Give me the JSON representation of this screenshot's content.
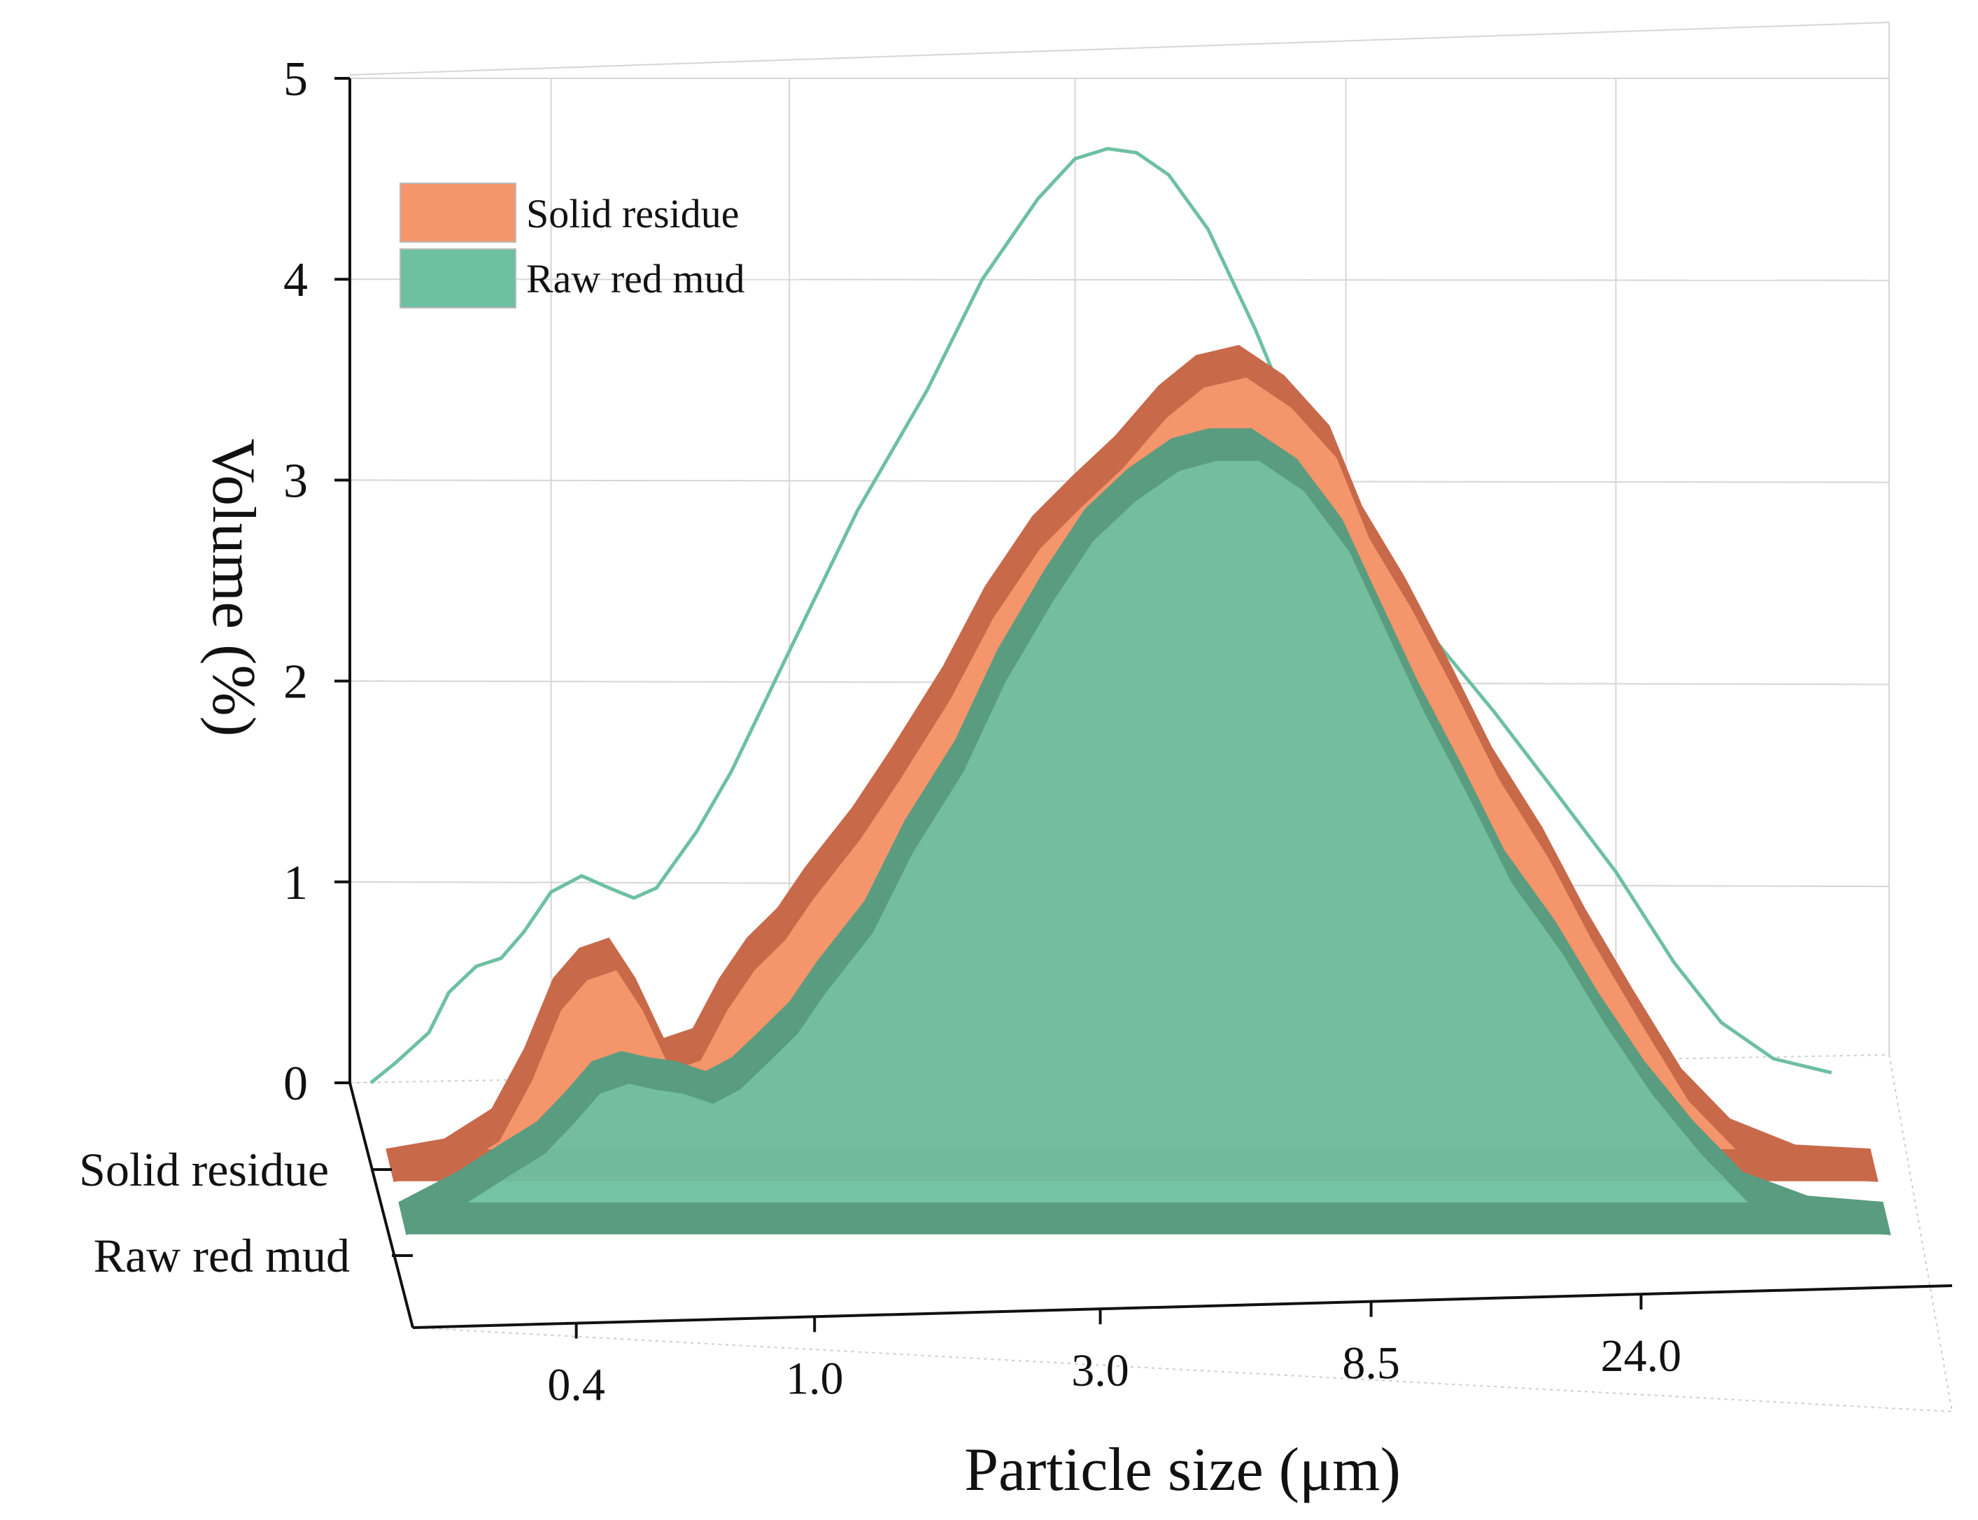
{
  "chart_data": {
    "type": "area",
    "style": "3d-waterfall",
    "ylabel": "Volume (%)",
    "xlabel": "Particle size (μm)",
    "ylim": [
      0,
      5
    ],
    "y_ticks": [
      "0",
      "1",
      "2",
      "3",
      "4",
      "5"
    ],
    "x_tick_labels": [
      "0.4",
      "1.0",
      "3.0",
      "8.5",
      "24.0"
    ],
    "x_scale": "log",
    "legend": {
      "position": "top-left",
      "entries": [
        {
          "label": "Solid residue",
          "color": "#f4956b"
        },
        {
          "label": "Raw red mud",
          "color": "#6dc0a0"
        }
      ]
    },
    "series": [
      {
        "name": "Solid residue",
        "color": "#f4956b",
        "edge_color": "#c8694a",
        "x": [
          0.2,
          0.25,
          0.3,
          0.34,
          0.38,
          0.42,
          0.47,
          0.52,
          0.58,
          0.65,
          0.72,
          0.8,
          0.9,
          1.0,
          1.2,
          1.4,
          1.7,
          2.0,
          2.4,
          2.8,
          3.3,
          3.9,
          4.5,
          5.3,
          6.3,
          7.5,
          8.5,
          10,
          12,
          14,
          17,
          20,
          24,
          29,
          35,
          45,
          60
        ],
        "values": [
          0,
          0.05,
          0.2,
          0.5,
          0.85,
          1.0,
          1.05,
          0.85,
          0.55,
          0.6,
          0.85,
          1.05,
          1.2,
          1.4,
          1.7,
          2.0,
          2.4,
          2.8,
          3.15,
          3.35,
          3.55,
          3.8,
          3.95,
          4.0,
          3.85,
          3.6,
          3.2,
          2.85,
          2.4,
          2.0,
          1.6,
          1.2,
          0.8,
          0.4,
          0.15,
          0.02,
          0
        ]
      },
      {
        "name": "Raw red mud",
        "color": "#6dc0a0",
        "edge_color": "#5a9c80",
        "x": [
          0.2,
          0.25,
          0.3,
          0.34,
          0.38,
          0.42,
          0.47,
          0.52,
          0.58,
          0.65,
          0.72,
          0.8,
          0.9,
          1.0,
          1.2,
          1.4,
          1.7,
          2.0,
          2.4,
          2.8,
          3.3,
          3.9,
          4.5,
          5.3,
          6.3,
          7.5,
          8.5,
          10,
          12,
          14,
          17,
          20,
          24,
          29,
          35,
          45,
          60
        ],
        "values": [
          0,
          0.15,
          0.3,
          0.4,
          0.55,
          0.7,
          0.75,
          0.72,
          0.7,
          0.65,
          0.72,
          0.85,
          1.0,
          1.2,
          1.5,
          1.9,
          2.3,
          2.75,
          3.15,
          3.45,
          3.65,
          3.8,
          3.85,
          3.85,
          3.7,
          3.4,
          3.05,
          2.6,
          2.15,
          1.75,
          1.4,
          1.05,
          0.7,
          0.4,
          0.15,
          0.03,
          0
        ]
      }
    ],
    "outline_curve": {
      "color": "#6dc0a0",
      "x": [
        0.2,
        0.22,
        0.25,
        0.27,
        0.3,
        0.33,
        0.36,
        0.4,
        0.45,
        0.5,
        0.55,
        0.6,
        0.7,
        0.8,
        1.0,
        1.3,
        1.7,
        2.1,
        2.6,
        3.0,
        3.4,
        3.8,
        4.3,
        5.0,
        6.0,
        7.5,
        9.5,
        12,
        15,
        19,
        24,
        30,
        36,
        44,
        55
      ],
      "values": [
        0,
        0.1,
        0.25,
        0.45,
        0.58,
        0.62,
        0.75,
        0.95,
        1.03,
        0.97,
        0.92,
        0.97,
        1.25,
        1.55,
        2.15,
        2.85,
        3.45,
        4.0,
        4.4,
        4.6,
        4.65,
        4.63,
        4.52,
        4.25,
        3.75,
        3.05,
        2.55,
        2.2,
        1.85,
        1.45,
        1.05,
        0.6,
        0.3,
        0.12,
        0.05
      ]
    }
  }
}
